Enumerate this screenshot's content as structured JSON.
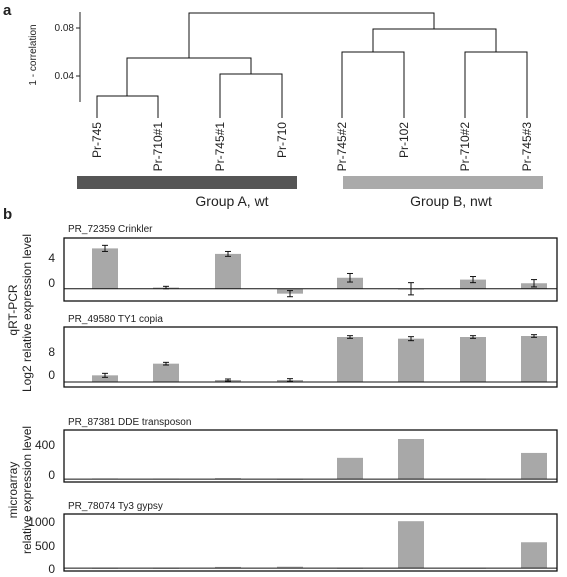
{
  "panel_labels": {
    "a": "a",
    "b": "b"
  },
  "dendrogram": {
    "ylabel": "1 - correlation",
    "yticks": [
      "0.08",
      "0.04"
    ],
    "leaves": [
      "Pr-745",
      "Pr-710#1",
      "Pr-745#1",
      "Pr-710",
      "Pr-745#2",
      "Pr-102",
      "Pr-710#2",
      "Pr-745#3"
    ],
    "groups": [
      {
        "label": "Group A, wt",
        "color": "#555555"
      },
      {
        "label": "Group B, nwt",
        "color": "#aaaaaa"
      }
    ]
  },
  "side_labels": {
    "qrt_method": "qRT-PCR",
    "qrt_measure": "Log2 relative expression level",
    "array_method": "microarray",
    "array_measure": "relative expression level"
  },
  "chart_data": [
    {
      "type": "bar",
      "title": "PR_72359 Crinkler",
      "categories": [
        "Pr-745",
        "Pr-710#1",
        "Pr-745#1",
        "Pr-710",
        "Pr-745#2",
        "Pr-102",
        "Pr-710#2",
        "Pr-745#3"
      ],
      "values": [
        6.6,
        0.2,
        5.7,
        -0.8,
        1.8,
        0,
        1.5,
        0.9
      ],
      "errors": [
        0.5,
        0.2,
        0.4,
        0.5,
        0.7,
        1.0,
        0.5,
        0.6
      ],
      "yticks": [
        "4",
        "0"
      ],
      "ylim": [
        -2.0,
        8.3
      ],
      "bar_color": "#a8a8a8"
    },
    {
      "type": "bar",
      "title": "PR_49580 TY1 copia",
      "categories": [
        "Pr-745",
        "Pr-710#1",
        "Pr-745#1",
        "Pr-710",
        "Pr-745#2",
        "Pr-102",
        "Pr-710#2",
        "Pr-745#3"
      ],
      "values": [
        2.0,
        5.5,
        0.6,
        0.6,
        13.5,
        13.0,
        13.5,
        13.8
      ],
      "errors": [
        0.6,
        0.4,
        0.3,
        0.4,
        0.4,
        0.6,
        0.4,
        0.4
      ],
      "yticks": [
        "8",
        "0"
      ],
      "ylim": [
        -1.5,
        16.5
      ],
      "bar_color": "#a8a8a8"
    },
    {
      "type": "bar",
      "title": "PR_87381 DDE transposon",
      "categories": [
        "Pr-745",
        "Pr-710#1",
        "Pr-745#1",
        "Pr-710",
        "Pr-745#2",
        "Pr-102",
        "Pr-710#2",
        "Pr-745#3"
      ],
      "values": [
        8,
        5,
        12,
        3,
        260,
        490,
        4,
        320
      ],
      "yticks": [
        "400",
        "0"
      ],
      "ylim": [
        -35,
        600
      ],
      "bar_color": "#a8a8a8"
    },
    {
      "type": "bar",
      "title": "PR_78074 Ty3 gypsy",
      "categories": [
        "Pr-745",
        "Pr-710#1",
        "Pr-745#1",
        "Pr-710",
        "Pr-745#2",
        "Pr-102",
        "Pr-710#2",
        "Pr-745#3"
      ],
      "values": [
        5,
        5,
        25,
        30,
        5,
        980,
        5,
        540
      ],
      "yticks": [
        "1000",
        "500",
        "0"
      ],
      "ylim": [
        -60,
        1130
      ],
      "bar_color": "#a8a8a8"
    }
  ]
}
